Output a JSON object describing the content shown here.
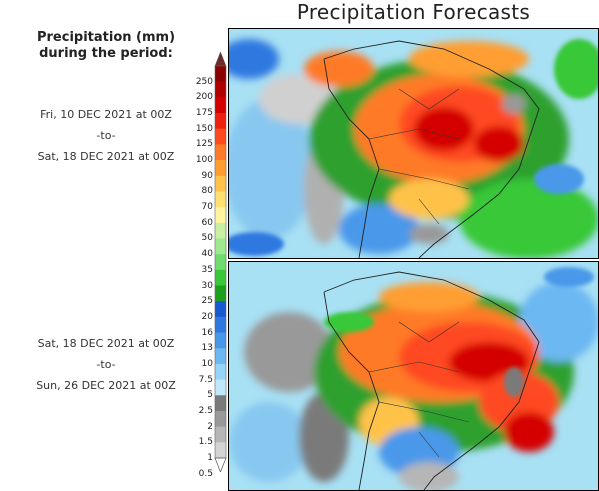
{
  "title": "Precipitation Forecasts",
  "legend": {
    "title_line1": "Precipitation (mm)",
    "title_line2": "during the period:",
    "units": "mm",
    "levels": [
      "250",
      "200",
      "175",
      "150",
      "125",
      "100",
      "90",
      "80",
      "70",
      "60",
      "50",
      "40",
      "35",
      "30",
      "25",
      "20",
      "16",
      "13",
      "10",
      "7.5",
      "5",
      "2.5",
      "2",
      "1.5",
      "1",
      "0.5"
    ],
    "colors": [
      "#6b2b2b",
      "#8b0000",
      "#b00000",
      "#d40000",
      "#f02010",
      "#ff4a20",
      "#ff7a28",
      "#ff9e30",
      "#ffc24a",
      "#ffe070",
      "#fff4a0",
      "#c8f0a0",
      "#a0e890",
      "#70dc70",
      "#38c838",
      "#1ea01e",
      "#1a58d0",
      "#2e78e0",
      "#4898ea",
      "#6cb8f2",
      "#96d4f8",
      "#bfe8fb",
      "#7a7a7a",
      "#999999",
      "#b6b6b6",
      "#d4d4d4",
      "#ffffff"
    ]
  },
  "periods": [
    {
      "start": "Fri, 10 DEC 2021 at 00Z",
      "separator": "-to-",
      "end": "Sat, 18 DEC 2021 at 00Z"
    },
    {
      "start": "Sat, 18 DEC 2021 at 00Z",
      "separator": "-to-",
      "end": "Sun, 26 DEC 2021 at 00Z"
    }
  ],
  "panels": [
    {
      "label": "Forecast map, 10–18 Dec 2021"
    },
    {
      "label": "Forecast map, 18–26 Dec 2021"
    }
  ]
}
